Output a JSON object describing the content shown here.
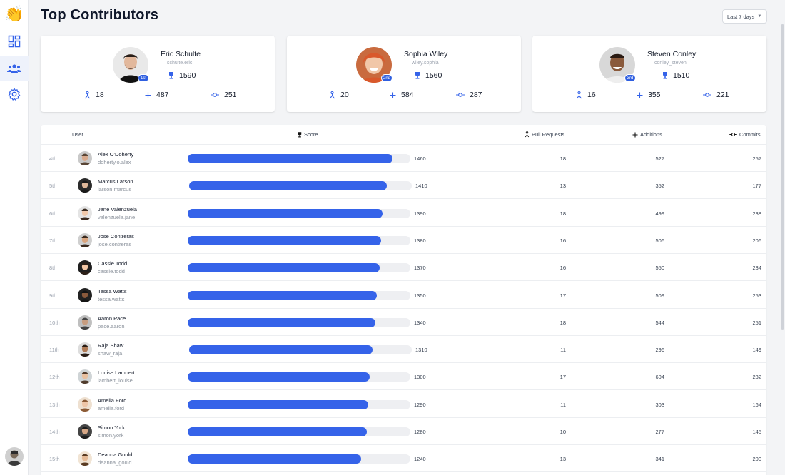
{
  "app": {
    "logo": "👏"
  },
  "page": {
    "title": "Top Contributors"
  },
  "range": {
    "label": "Last 7 days"
  },
  "nav": [
    {
      "icon": "dashboard-icon"
    },
    {
      "icon": "users-icon"
    },
    {
      "icon": "gear-icon"
    }
  ],
  "colors": {
    "accent": "#3563e9",
    "badge": "#2f5fe0",
    "track": "#eeeff2"
  },
  "top": [
    {
      "name": "Eric Schulte",
      "handle": "schulte.eric",
      "badge": "1st",
      "score": "1590",
      "pull_requests": "18",
      "additions": "487",
      "commits": "251"
    },
    {
      "name": "Sophia Wiley",
      "handle": "wiley.sophia",
      "badge": "2nd",
      "score": "1560",
      "pull_requests": "20",
      "additions": "584",
      "commits": "287"
    },
    {
      "name": "Steven Conley",
      "handle": "conley_steven",
      "badge": "3rd",
      "score": "1510",
      "pull_requests": "16",
      "additions": "355",
      "commits": "221"
    }
  ],
  "table": {
    "headers": {
      "user": "User",
      "score": "Score",
      "pull_requests": "Pull Requests",
      "additions": "Additions",
      "commits": "Commits"
    },
    "max_score": 1590,
    "rows": [
      {
        "rank": "4th",
        "name": "Alex O'Doherty",
        "handle": "doherty.o.alex",
        "score": 1460,
        "pull_requests": "18",
        "additions": "527",
        "commits": "257"
      },
      {
        "rank": "5th",
        "name": "Marcus Larson",
        "handle": "larson.marcus",
        "score": 1410,
        "pull_requests": "13",
        "additions": "352",
        "commits": "177"
      },
      {
        "rank": "6th",
        "name": "Jane Valenzuela",
        "handle": "valenzuela.jane",
        "score": 1390,
        "pull_requests": "18",
        "additions": "499",
        "commits": "238"
      },
      {
        "rank": "7th",
        "name": "Jose Contreras",
        "handle": "jose.contreras",
        "score": 1380,
        "pull_requests": "16",
        "additions": "506",
        "commits": "206"
      },
      {
        "rank": "8th",
        "name": "Cassie Todd",
        "handle": "cassie.todd",
        "score": 1370,
        "pull_requests": "16",
        "additions": "550",
        "commits": "234"
      },
      {
        "rank": "9th",
        "name": "Tessa Watts",
        "handle": "tessa.watts",
        "score": 1350,
        "pull_requests": "17",
        "additions": "509",
        "commits": "253"
      },
      {
        "rank": "10th",
        "name": "Aaron Pace",
        "handle": "pace.aaron",
        "score": 1340,
        "pull_requests": "18",
        "additions": "544",
        "commits": "251"
      },
      {
        "rank": "11th",
        "name": "Raja Shaw",
        "handle": "shaw_raja",
        "score": 1310,
        "pull_requests": "11",
        "additions": "296",
        "commits": "149"
      },
      {
        "rank": "12th",
        "name": "Louise Lambert",
        "handle": "lambert_louise",
        "score": 1300,
        "pull_requests": "17",
        "additions": "604",
        "commits": "232"
      },
      {
        "rank": "13th",
        "name": "Amelia Ford",
        "handle": "amelia.ford",
        "score": 1290,
        "pull_requests": "11",
        "additions": "303",
        "commits": "164"
      },
      {
        "rank": "14th",
        "name": "Simon York",
        "handle": "simon.york",
        "score": 1280,
        "pull_requests": "10",
        "additions": "277",
        "commits": "145"
      },
      {
        "rank": "15th",
        "name": "Deanna Gould",
        "handle": "deanna_gould",
        "score": 1240,
        "pull_requests": "13",
        "additions": "341",
        "commits": "200"
      }
    ]
  }
}
